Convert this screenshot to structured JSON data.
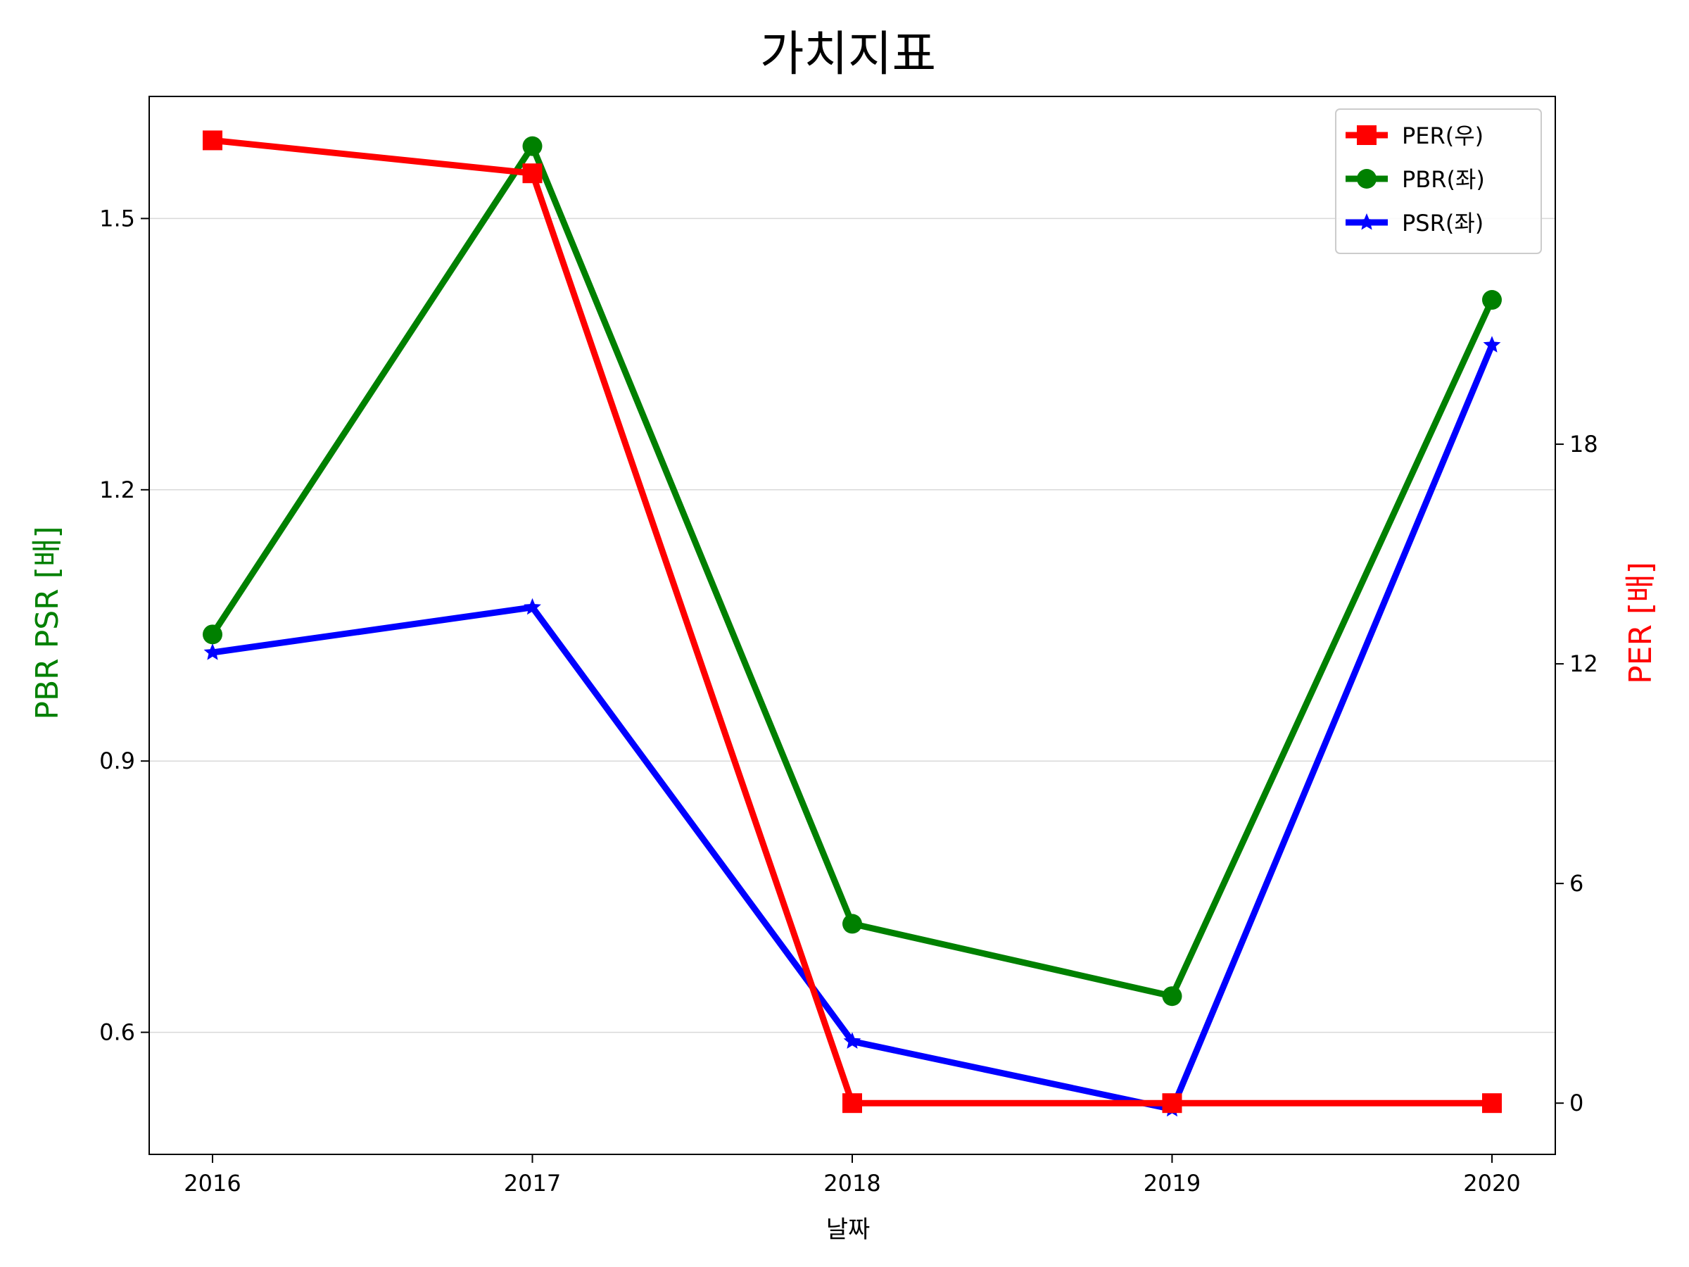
{
  "chart_data": {
    "type": "line",
    "title": "가치지표",
    "xlabel": "날짜",
    "ylabel_left": "PBR PSR [배]",
    "ylabel_right": "PER [배]",
    "categories": [
      "2016",
      "2017",
      "2018",
      "2019",
      "2020"
    ],
    "ylim_left": [
      0.465,
      1.635
    ],
    "yticks_left": [
      "0.6",
      "0.9",
      "1.2",
      "1.5"
    ],
    "ylim_right": [
      -1.4,
      27.5
    ],
    "yticks_right": [
      "0",
      "6",
      "12",
      "18"
    ],
    "grid": "horizontal (left axis)",
    "legend_position": "top-right",
    "series": [
      {
        "name": "PER(우)",
        "axis": "right",
        "color": "#ff0000",
        "marker": "square",
        "values": [
          26.3,
          25.4,
          0,
          0,
          0
        ]
      },
      {
        "name": "PBR(좌)",
        "axis": "left",
        "color": "#008000",
        "marker": "circle",
        "values": [
          1.04,
          1.58,
          0.72,
          0.64,
          1.41
        ]
      },
      {
        "name": "PSR(좌)",
        "axis": "left",
        "color": "#0000ff",
        "marker": "star",
        "values": [
          1.02,
          1.07,
          0.59,
          0.515,
          1.36
        ]
      }
    ],
    "colors": {
      "left_label": "#008000",
      "right_label": "#ff0000",
      "grid": "#d9d9d9"
    }
  }
}
